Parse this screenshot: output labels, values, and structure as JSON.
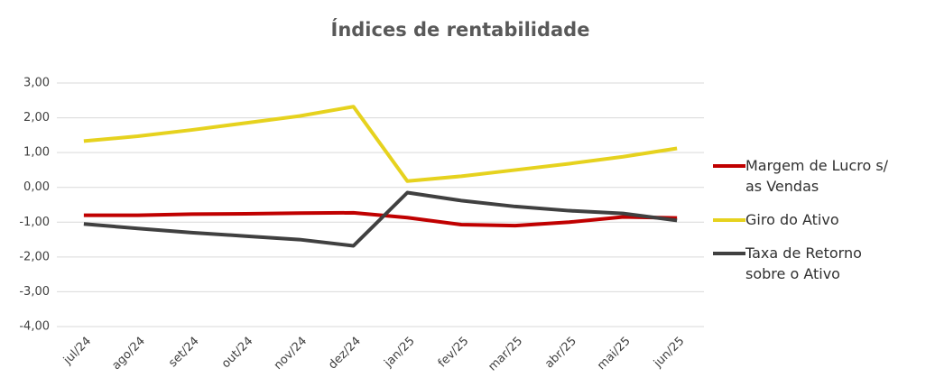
{
  "chart_data": {
    "type": "line",
    "title": "Índices de rentabilidade",
    "categories": [
      "jul/24",
      "ago/24",
      "set/24",
      "out/24",
      "nov/24",
      "dez/24",
      "jan/25",
      "fev/25",
      "mar/25",
      "abr/25",
      "mai/25",
      "jun/25"
    ],
    "series": [
      {
        "name": "Margem de Lucro s/ as Vendas",
        "color": "#c00000",
        "values": [
          -0.8,
          -0.8,
          -0.77,
          -0.76,
          -0.74,
          -0.73,
          -0.87,
          -1.07,
          -1.1,
          -1.0,
          -0.85,
          -0.88
        ]
      },
      {
        "name": "Giro do Ativo",
        "color": "#e6d21e",
        "values": [
          1.33,
          1.47,
          1.65,
          1.85,
          2.05,
          2.32,
          0.18,
          0.32,
          0.5,
          0.68,
          0.88,
          1.12
        ]
      },
      {
        "name": "Taxa de Retorno sobre o Ativo",
        "color": "#404040",
        "values": [
          -1.05,
          -1.18,
          -1.3,
          -1.4,
          -1.5,
          -1.68,
          -0.15,
          -0.38,
          -0.55,
          -0.67,
          -0.75,
          -0.95
        ]
      }
    ],
    "ylim": [
      -4,
      3
    ],
    "yticks": [
      {
        "value": -4,
        "label": "-4,00"
      },
      {
        "value": -3,
        "label": "-3,00"
      },
      {
        "value": -2,
        "label": "-2,00"
      },
      {
        "value": -1,
        "label": "-1,00"
      },
      {
        "value": 0,
        "label": "0,00"
      },
      {
        "value": 1,
        "label": "1,00"
      },
      {
        "value": 2,
        "label": "2,00"
      },
      {
        "value": 3,
        "label": "3,00"
      }
    ],
    "grid": true,
    "legend": "right"
  }
}
